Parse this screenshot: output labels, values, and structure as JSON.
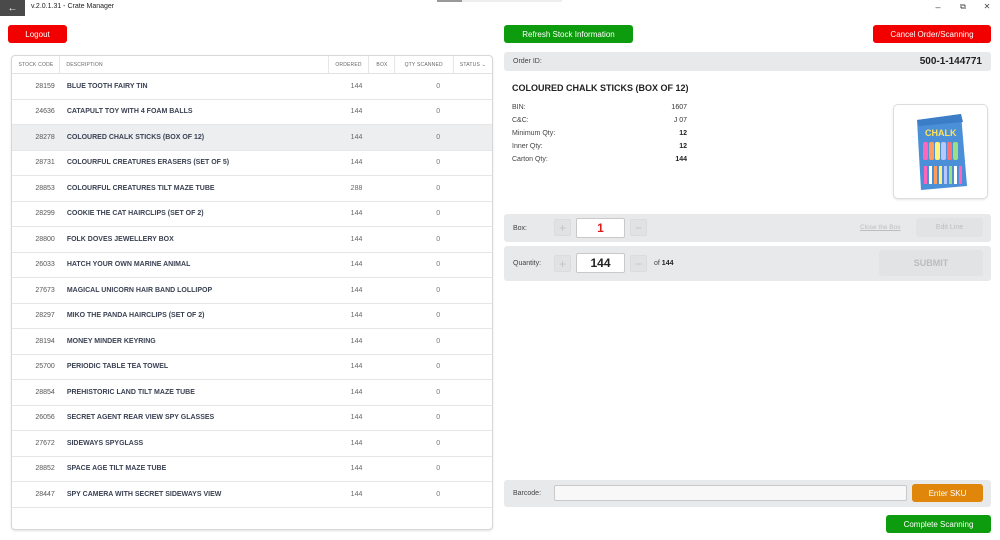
{
  "window": {
    "title": "v.2.0.1.31 - Crate Manager",
    "back_icon": "←",
    "minimize_icon": "–",
    "restore_icon": "⧉",
    "close_icon": "✕"
  },
  "toolbar": {
    "logout_label": "Logout",
    "refresh_label": "Refresh Stock Information",
    "cancel_label": "Cancel Order/Scanning",
    "colors": {
      "red": "#f20000",
      "green": "#0d9c0d",
      "orange": "#e0860a"
    }
  },
  "table": {
    "columns": [
      "STOCK CODE",
      "DESCRIPTION",
      "ORDERED",
      "BOX",
      "QTY SCANNED",
      "STATUS"
    ],
    "status_sort_icon": "⌄",
    "selected_index": 2,
    "rows": [
      {
        "code": "28159",
        "description": "BLUE TOOTH FAIRY TIN",
        "ordered": "144",
        "box": "",
        "scanned": "0",
        "status": ""
      },
      {
        "code": "24636",
        "description": "CATAPULT TOY WITH 4 FOAM BALLS",
        "ordered": "144",
        "box": "",
        "scanned": "0",
        "status": ""
      },
      {
        "code": "28278",
        "description": "COLOURED CHALK STICKS (BOX OF 12)",
        "ordered": "144",
        "box": "",
        "scanned": "0",
        "status": ""
      },
      {
        "code": "28731",
        "description": "COLOURFUL CREATURES ERASERS (SET OF 5)",
        "ordered": "144",
        "box": "",
        "scanned": "0",
        "status": ""
      },
      {
        "code": "28853",
        "description": "COLOURFUL CREATURES TILT MAZE TUBE",
        "ordered": "288",
        "box": "",
        "scanned": "0",
        "status": ""
      },
      {
        "code": "28299",
        "description": "COOKIE THE CAT HAIRCLIPS (SET OF 2)",
        "ordered": "144",
        "box": "",
        "scanned": "0",
        "status": ""
      },
      {
        "code": "28800",
        "description": "FOLK DOVES JEWELLERY BOX",
        "ordered": "144",
        "box": "",
        "scanned": "0",
        "status": ""
      },
      {
        "code": "26033",
        "description": "HATCH YOUR OWN MARINE ANIMAL",
        "ordered": "144",
        "box": "",
        "scanned": "0",
        "status": ""
      },
      {
        "code": "27673",
        "description": "MAGICAL UNICORN HAIR BAND LOLLIPOP",
        "ordered": "144",
        "box": "",
        "scanned": "0",
        "status": ""
      },
      {
        "code": "28297",
        "description": "MIKO THE PANDA HAIRCLIPS (SET OF 2)",
        "ordered": "144",
        "box": "",
        "scanned": "0",
        "status": ""
      },
      {
        "code": "28194",
        "description": "MONEY MINDER KEYRING",
        "ordered": "144",
        "box": "",
        "scanned": "0",
        "status": ""
      },
      {
        "code": "25700",
        "description": "PERIODIC TABLE TEA TOWEL",
        "ordered": "144",
        "box": "",
        "scanned": "0",
        "status": ""
      },
      {
        "code": "28854",
        "description": "PREHISTORIC LAND TILT MAZE TUBE",
        "ordered": "144",
        "box": "",
        "scanned": "0",
        "status": ""
      },
      {
        "code": "26056",
        "description": "SECRET AGENT REAR VIEW SPY GLASSES",
        "ordered": "144",
        "box": "",
        "scanned": "0",
        "status": ""
      },
      {
        "code": "27672",
        "description": "SIDEWAYS SPYGLASS",
        "ordered": "144",
        "box": "",
        "scanned": "0",
        "status": ""
      },
      {
        "code": "28852",
        "description": "SPACE AGE TILT MAZE TUBE",
        "ordered": "144",
        "box": "",
        "scanned": "0",
        "status": ""
      },
      {
        "code": "28447",
        "description": "SPY CAMERA WITH SECRET SIDEWAYS VIEW",
        "ordered": "144",
        "box": "",
        "scanned": "0",
        "status": ""
      }
    ]
  },
  "order": {
    "label": "Order ID:",
    "id": "500-1-144771"
  },
  "product": {
    "title": "COLOURED CHALK STICKS (BOX OF 12)",
    "image_alt": "chalk-box-image",
    "image_text": "CHALK",
    "fields": [
      {
        "label": "BIN:",
        "value": "1607",
        "bold": false
      },
      {
        "label": "C&C:",
        "value": "J 07",
        "bold": false
      },
      {
        "label": "Minimum Qty:",
        "value": "12",
        "bold": true
      },
      {
        "label": "Inner Qty:",
        "value": "12",
        "bold": true
      },
      {
        "label": "Carton Qty:",
        "value": "144",
        "bold": true
      }
    ]
  },
  "box": {
    "label": "Box:",
    "value": "1",
    "value_color": "#e01b1b",
    "plus": "+",
    "minus": "−",
    "close_box_label": "Close the Box",
    "edit_line_label": "Edit Line"
  },
  "quantity": {
    "label": "Quantity:",
    "value": "144",
    "plus": "+",
    "minus": "−",
    "of_prefix": "of",
    "of_total": "144",
    "submit_label": "SUBMIT"
  },
  "barcode": {
    "label": "Barcode:",
    "value": "",
    "placeholder": "",
    "enter_sku_label": "Enter SKU"
  },
  "footer": {
    "complete_label": "Complete Scanning"
  }
}
